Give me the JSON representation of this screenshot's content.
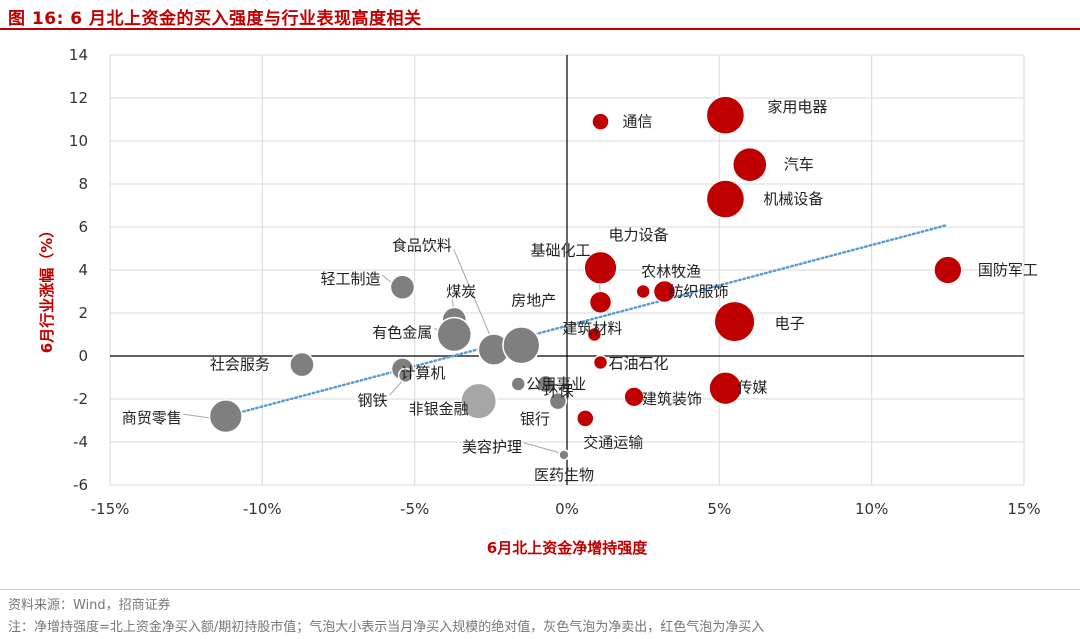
{
  "header": {
    "title": "图 16:  6 月北上资金的买入强度与行业表现高度相关"
  },
  "footer": {
    "source": "资料来源：Wind，招商证券",
    "note": "注：净增持强度=北上资金净买入额/期初持股市值；气泡大小表示当月净买入规模的绝对值，灰色气泡为净卖出，红色气泡为净买入"
  },
  "colors": {
    "accent": "#c00000",
    "net_buy": "#c00000",
    "net_sell": "#7f7f7f",
    "net_sell_light": "#a6a6a6",
    "trendline": "#5b9bd5",
    "gridline": "#d9d9d9"
  },
  "chart_data": {
    "type": "scatter",
    "xlabel": "6月北上资金净增持强度",
    "ylabel": "6月行业涨幅（%）",
    "xlim": [
      -15,
      15
    ],
    "ylim": [
      -6,
      14
    ],
    "x_ticks": [
      -15,
      -10,
      -5,
      0,
      5,
      10,
      15
    ],
    "x_tick_labels": [
      "-15%",
      "-10%",
      "-5%",
      "0%",
      "5%",
      "10%",
      "15%"
    ],
    "y_ticks": [
      -6,
      -4,
      -2,
      0,
      2,
      4,
      6,
      8,
      10,
      12,
      14
    ],
    "y_tick_labels": [
      "-6",
      "-4",
      "-2",
      "0",
      "2",
      "4",
      "6",
      "8",
      "10",
      "12",
      "14"
    ],
    "grid": true,
    "trendline": {
      "style": "dotted",
      "from": [
        -11.2,
        -2.8
      ],
      "to": [
        12.5,
        6.1
      ]
    },
    "points": [
      {
        "name": "通信",
        "x": 1.1,
        "y": 10.9,
        "size": 0.15,
        "flow": "buy"
      },
      {
        "name": "家用电器",
        "x": 5.2,
        "y": 11.2,
        "size": 0.75,
        "flow": "buy"
      },
      {
        "name": "汽车",
        "x": 6.0,
        "y": 8.9,
        "size": 0.6,
        "flow": "buy"
      },
      {
        "name": "机械设备",
        "x": 5.2,
        "y": 7.3,
        "size": 0.75,
        "flow": "buy"
      },
      {
        "name": "电力设备",
        "x": 1.1,
        "y": 4.1,
        "size": 0.55,
        "flow": "buy"
      },
      {
        "name": "农林牧渔",
        "x": 2.5,
        "y": 3.0,
        "size": 0.1,
        "flow": "buy"
      },
      {
        "name": "纺织服饰",
        "x": 3.2,
        "y": 3.0,
        "size": 0.25,
        "flow": "buy"
      },
      {
        "name": "基础化工",
        "x": 1.1,
        "y": 2.5,
        "size": 0.25,
        "flow": "buy"
      },
      {
        "name": "国防军工",
        "x": 12.5,
        "y": 4.0,
        "size": 0.4,
        "flow": "buy"
      },
      {
        "name": "电子",
        "x": 5.5,
        "y": 1.6,
        "size": 0.85,
        "flow": "buy"
      },
      {
        "name": "建筑材料",
        "x": 0.9,
        "y": 1.0,
        "size": 0.1,
        "flow": "buy"
      },
      {
        "name": "石油石化",
        "x": 1.1,
        "y": -0.3,
        "size": 0.1,
        "flow": "buy"
      },
      {
        "name": "传媒",
        "x": 5.2,
        "y": -1.5,
        "size": 0.55,
        "flow": "buy"
      },
      {
        "name": "建筑装饰",
        "x": 2.2,
        "y": -1.9,
        "size": 0.2,
        "flow": "buy"
      },
      {
        "name": "交通运输",
        "x": 0.6,
        "y": -2.9,
        "size": 0.15,
        "flow": "buy"
      },
      {
        "name": "轻工制造",
        "x": -5.4,
        "y": 3.2,
        "size": 0.3,
        "flow": "sell"
      },
      {
        "name": "煤炭",
        "x": -3.7,
        "y": 1.7,
        "size": 0.3,
        "flow": "sell"
      },
      {
        "name": "有色金属",
        "x": -3.7,
        "y": 1.0,
        "size": 0.6,
        "flow": "sell"
      },
      {
        "name": "食品饮料",
        "x": -2.4,
        "y": 0.3,
        "size": 0.5,
        "flow": "sell"
      },
      {
        "name": "房地产",
        "x": -1.5,
        "y": 0.5,
        "size": 0.7,
        "flow": "sell"
      },
      {
        "name": "社会服务",
        "x": -8.7,
        "y": -0.4,
        "size": 0.3,
        "flow": "sell"
      },
      {
        "name": "计算机",
        "x": -5.4,
        "y": -0.6,
        "size": 0.25,
        "flow": "sell"
      },
      {
        "name": "钢铁",
        "x": -5.3,
        "y": -0.9,
        "size": 0.1,
        "flow": "sell"
      },
      {
        "name": "环保",
        "x": -0.7,
        "y": -1.3,
        "size": 0.15,
        "flow": "sell"
      },
      {
        "name": "公用事业",
        "x": -1.6,
        "y": -1.3,
        "size": 0.1,
        "flow": "sell"
      },
      {
        "name": "非银金融",
        "x": -2.9,
        "y": -2.1,
        "size": 0.65,
        "flow": "sell_light"
      },
      {
        "name": "银行",
        "x": -0.3,
        "y": -2.1,
        "size": 0.15,
        "flow": "sell"
      },
      {
        "name": "商贸零售",
        "x": -11.2,
        "y": -2.8,
        "size": 0.55,
        "flow": "sell"
      },
      {
        "name": "美容护理",
        "x": -0.1,
        "y": -4.6,
        "size": 0.05,
        "flow": "sell"
      },
      {
        "name": "医药生物",
        "x": -0.1,
        "y": -4.6,
        "size": 0.05,
        "flow": "sell"
      }
    ]
  }
}
